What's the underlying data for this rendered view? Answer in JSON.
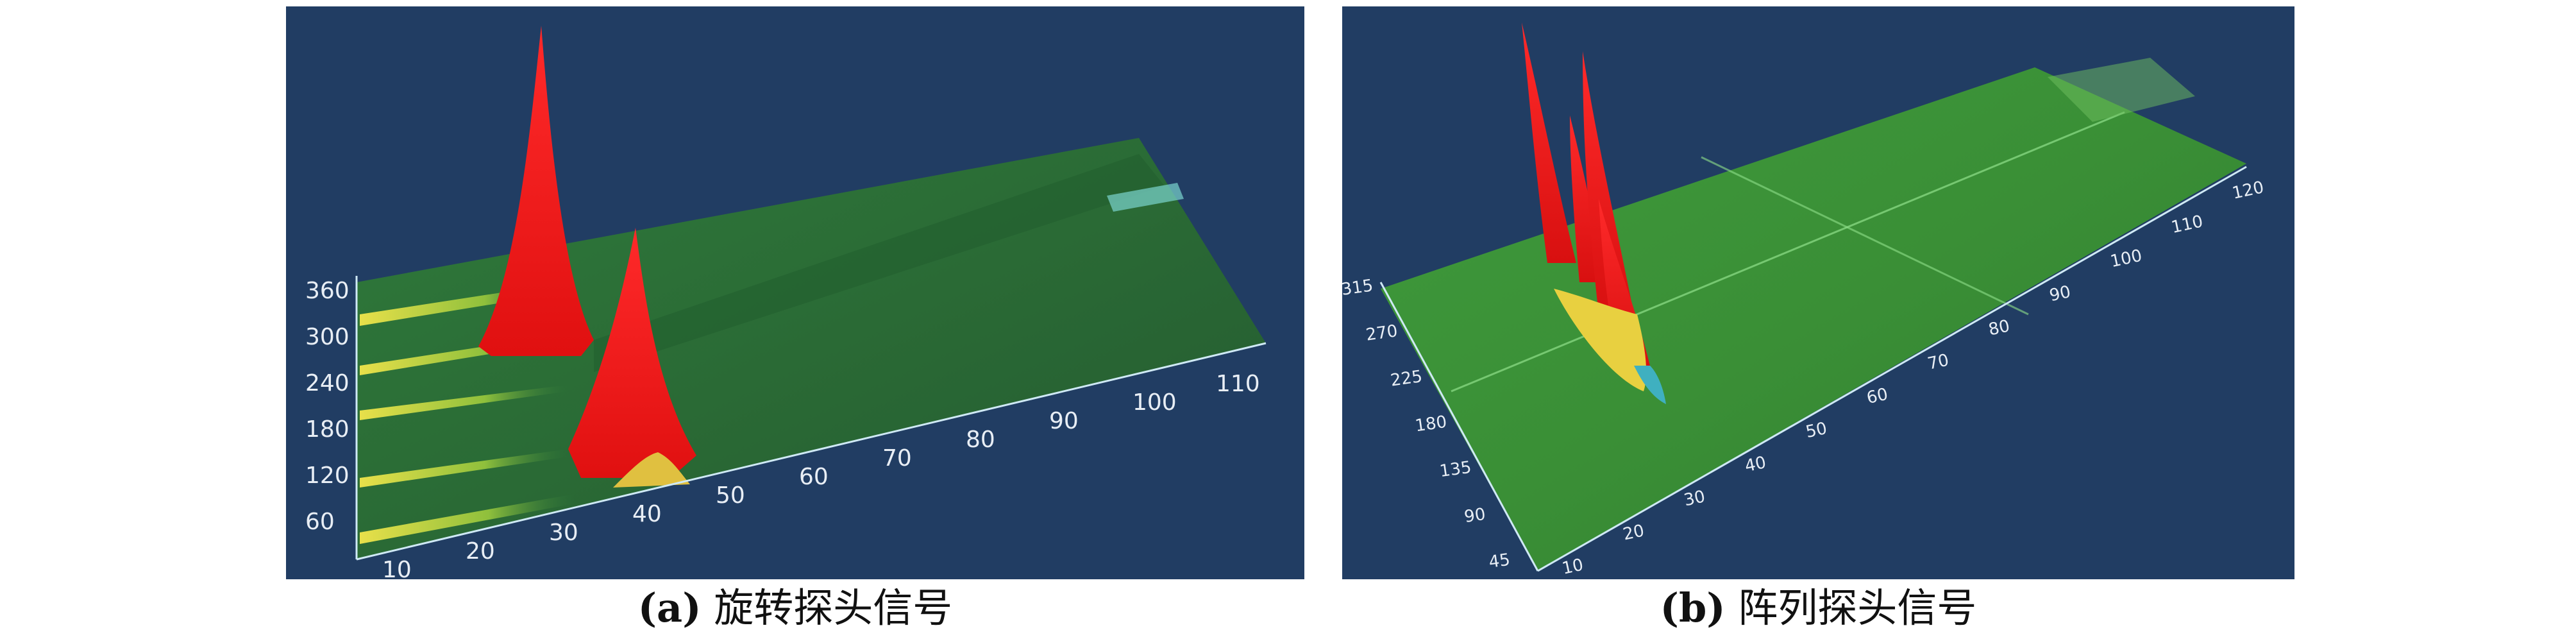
{
  "panels": [
    {
      "id": "a",
      "caption_label": "(a)",
      "caption_text": "旋转探头信号",
      "x_ticks": [
        "10",
        "20",
        "30",
        "40",
        "50",
        "60",
        "70",
        "80",
        "90",
        "100",
        "110"
      ],
      "y_ticks": [
        "60",
        "120",
        "180",
        "240",
        "300",
        "360"
      ]
    },
    {
      "id": "b",
      "caption_label": "(b)",
      "caption_text": "阵列探头信号",
      "x_ticks": [
        "10",
        "20",
        "30",
        "40",
        "50",
        "60",
        "70",
        "80",
        "90",
        "100",
        "110",
        "120"
      ],
      "y_ticks": [
        "45",
        "90",
        "135",
        "180",
        "225",
        "270",
        "315"
      ]
    }
  ]
}
